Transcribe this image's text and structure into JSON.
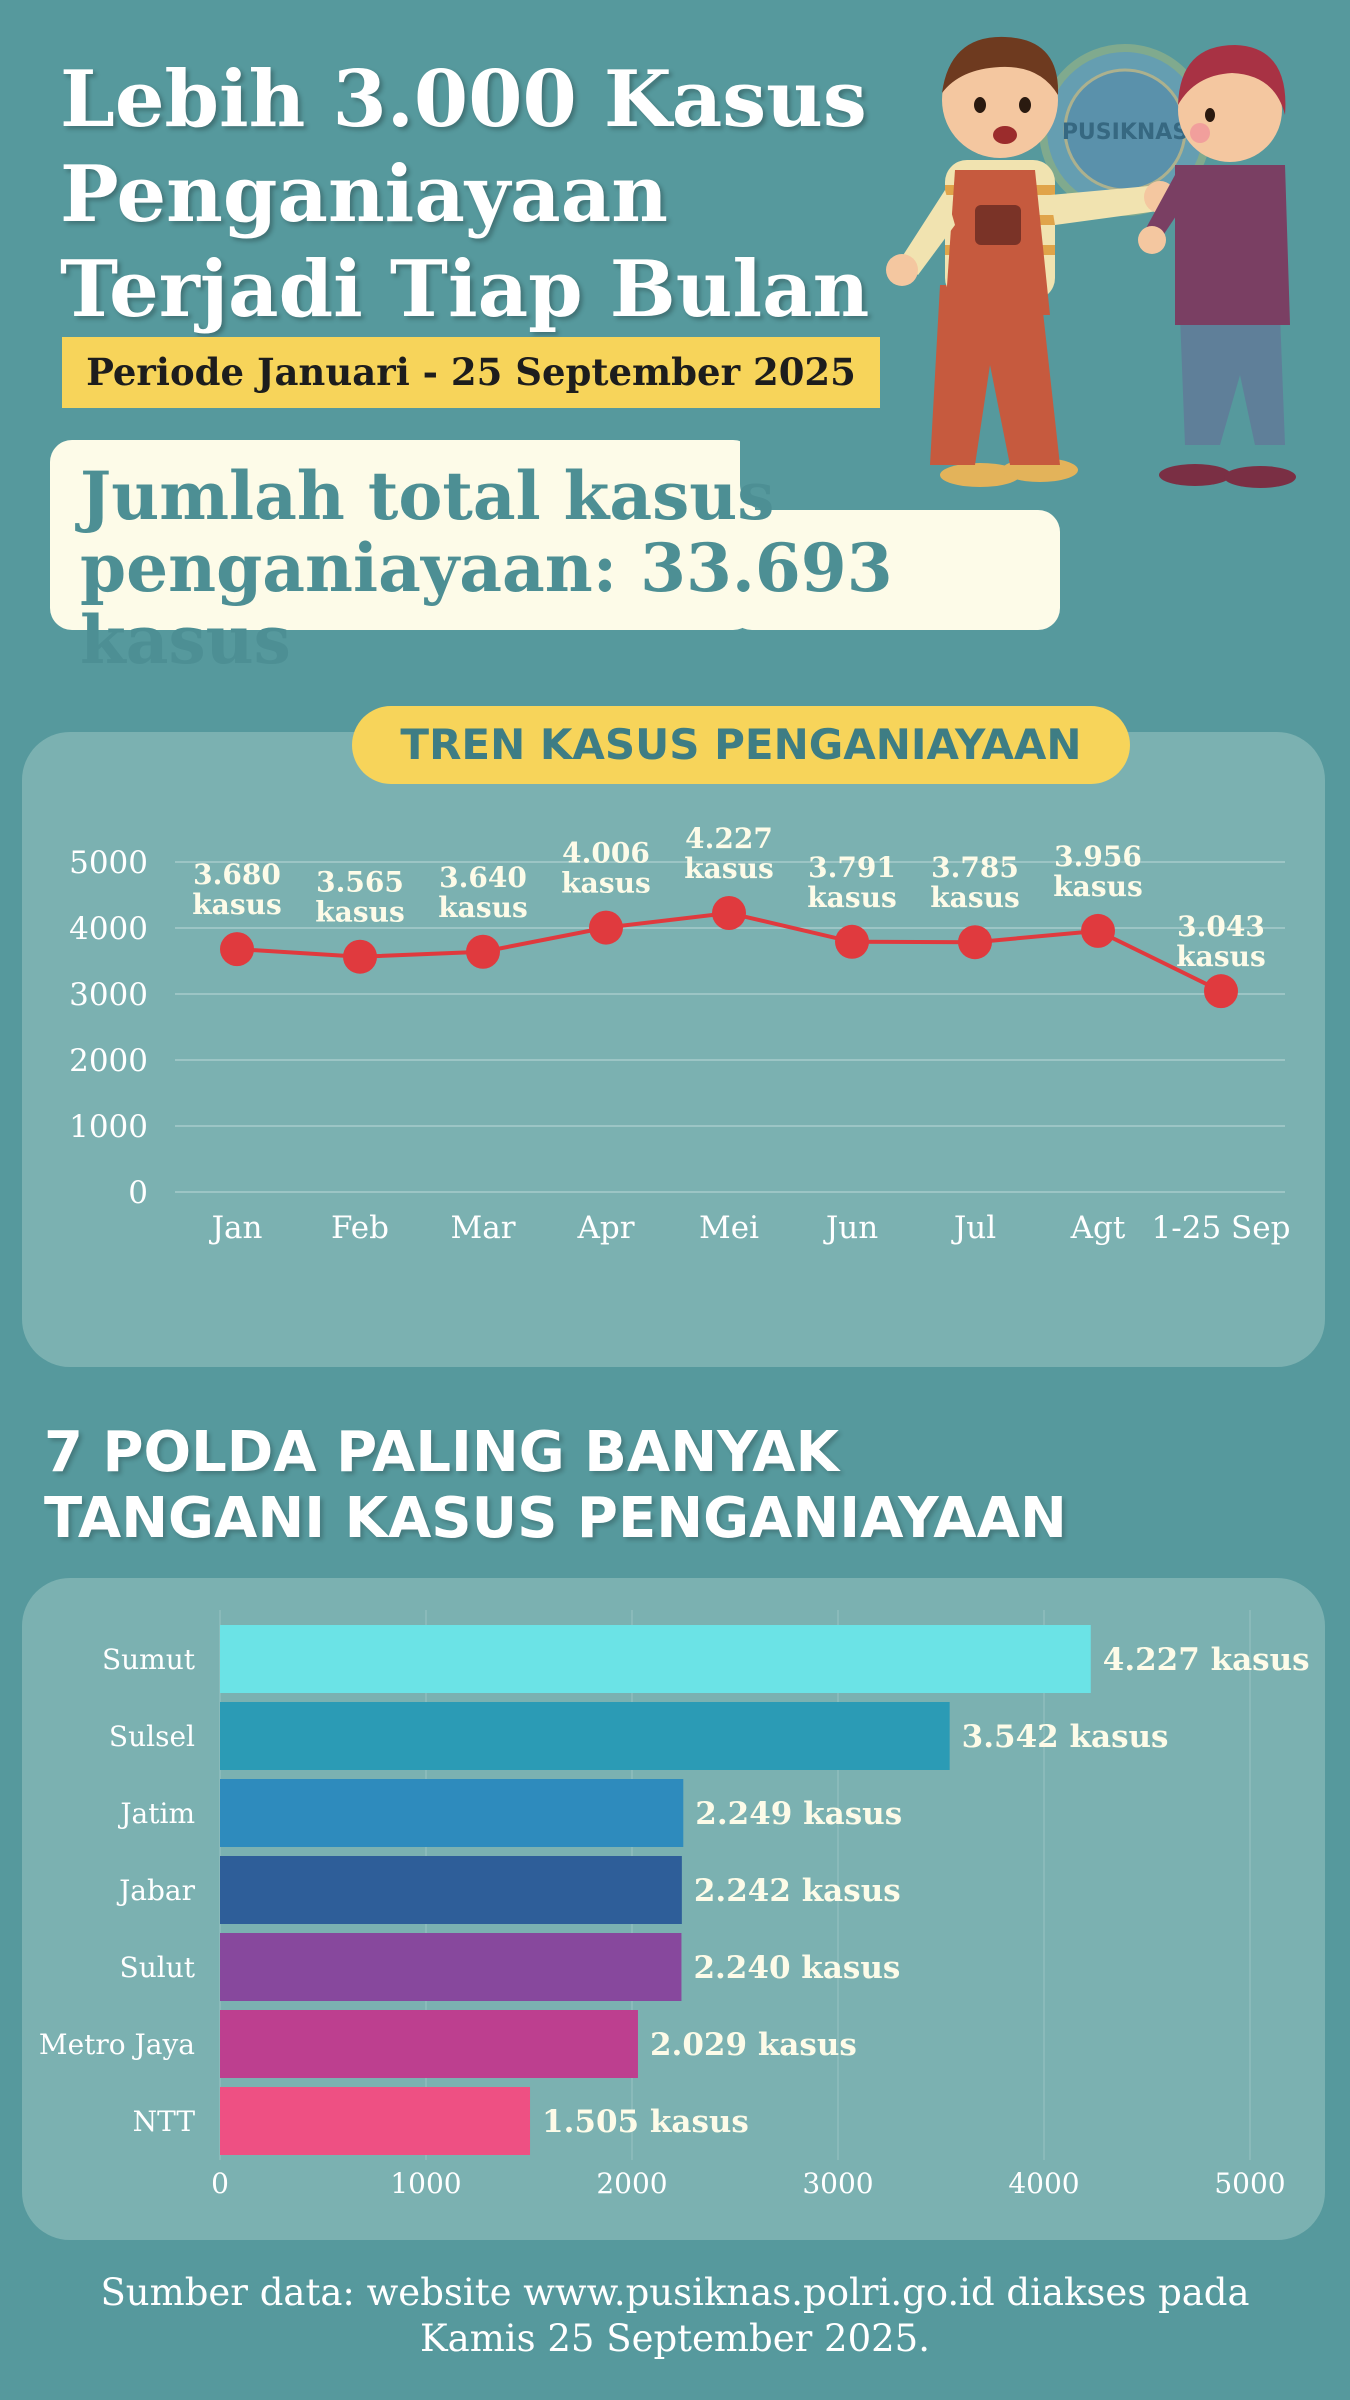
{
  "header": {
    "title_lines": [
      "Lebih 3.000 Kasus",
      "Penganiayaan",
      "Terjadi Tiap Bulan"
    ],
    "period": "Periode Januari - 25 September 2025",
    "total_lines": [
      "Jumlah total kasus",
      "penganiayaan: 33.693 kasus"
    ],
    "logo_text": "PUSIKNAS"
  },
  "trend": {
    "heading": "TREN KASUS PENGANIAYAAN"
  },
  "polda": {
    "heading_lines": [
      "7 POLDA PALING BANYAK",
      "TANGANI KASUS PENGANIAYAAN"
    ]
  },
  "source": {
    "lines": [
      "Sumber data: website www.pusiknas.polri.go.id diakses pada",
      "Kamis 25 September 2025."
    ]
  },
  "colors": {
    "background": "#56999d",
    "panel": "#7bb1b1",
    "accent_yellow": "#f7d45a",
    "line": "#e03a3e",
    "bar_colors": [
      "#6be3e6",
      "#2b9bb5",
      "#2e8bbd",
      "#2e5e99",
      "#87489d",
      "#bd3f8f",
      "#ee5083"
    ]
  },
  "chart_data": [
    {
      "type": "line",
      "x": [
        "Jan",
        "Feb",
        "Mar",
        "Apr",
        "Mei",
        "Jun",
        "Jul",
        "Agt",
        "1-25 Sep"
      ],
      "series": [
        {
          "values": [
            3680,
            3565,
            3640,
            4006,
            4227,
            3791,
            3785,
            3956,
            3043
          ],
          "labels": [
            "3.680",
            "3.565",
            "3.640",
            "4.006",
            "4.227",
            "3.791",
            "3.785",
            "3.956",
            "3.043"
          ]
        }
      ],
      "label_suffix": "kasus",
      "ylim": [
        0,
        5000
      ],
      "yticks": [
        "0",
        "1000",
        "2000",
        "3000",
        "4000",
        "5000"
      ],
      "grid": true
    },
    {
      "type": "bar",
      "orientation": "horizontal",
      "categories": [
        "Sumut",
        "Sulsel",
        "Jatim",
        "Jabar",
        "Sulut",
        "Metro Jaya",
        "NTT"
      ],
      "values": [
        4227,
        3542,
        2249,
        2242,
        2240,
        2029,
        1505
      ],
      "labels": [
        "4.227 kasus",
        "3.542 kasus",
        "2.249 kasus",
        "2.242 kasus",
        "2.240 kasus",
        "2.029 kasus",
        "1.505 kasus"
      ],
      "xlim": [
        0,
        5000
      ],
      "xticks": [
        "0",
        "1000",
        "2000",
        "3000",
        "4000",
        "5000"
      ],
      "grid": true
    }
  ]
}
